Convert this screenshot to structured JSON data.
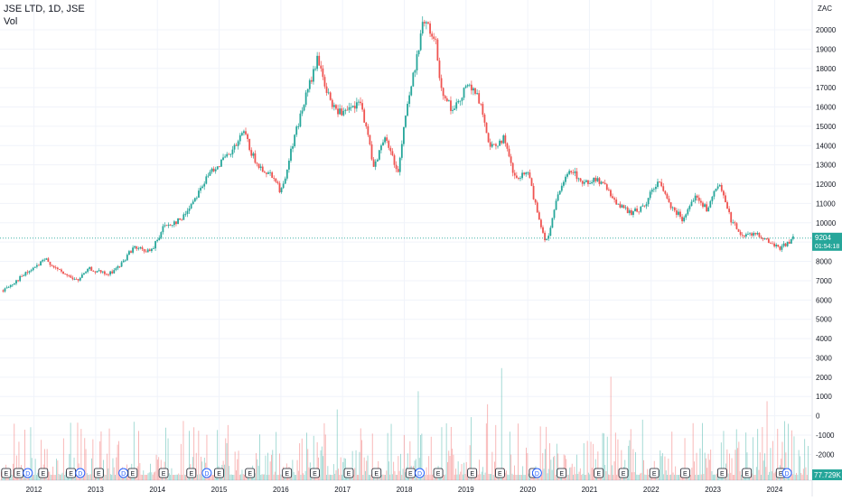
{
  "legend": {
    "symbol": "JSE LTD, 1D, JSE",
    "volume_label": "Vol"
  },
  "currency": "ZAC",
  "last_price": {
    "value": "9204",
    "countdown": "01:54:18",
    "color": "#26a69a"
  },
  "volume_last": {
    "value": "77.729K",
    "color": "#26a69a"
  },
  "colors": {
    "up": "#26a69a",
    "down": "#ef5350",
    "grid": "#f0f3fa",
    "text": "#131722",
    "event": "#2962ff"
  },
  "chart_data": {
    "type": "candlestick",
    "title": "JSE LTD, 1D, JSE",
    "x_ticks": [
      "2012",
      "2013",
      "2014",
      "2015",
      "2016",
      "2017",
      "2018",
      "2019",
      "2020",
      "2021",
      "2022",
      "2023",
      "2024"
    ],
    "price_axis": {
      "ticks": [
        0,
        1000,
        2000,
        3000,
        4000,
        5000,
        6000,
        7000,
        8000,
        9000,
        10000,
        11000,
        12000,
        13000,
        14000,
        15000,
        16000,
        17000,
        18000,
        19000,
        20000
      ]
    },
    "volume_axis": {
      "ticks": [
        -2000,
        -1000
      ]
    },
    "price_series": [
      {
        "x": 2011.5,
        "y": 6500
      },
      {
        "x": 2011.8,
        "y": 7200
      },
      {
        "x": 2012.2,
        "y": 8100
      },
      {
        "x": 2012.4,
        "y": 7500
      },
      {
        "x": 2012.7,
        "y": 7000
      },
      {
        "x": 2012.9,
        "y": 7600
      },
      {
        "x": 2013.2,
        "y": 7300
      },
      {
        "x": 2013.4,
        "y": 7800
      },
      {
        "x": 2013.6,
        "y": 8700
      },
      {
        "x": 2013.9,
        "y": 8500
      },
      {
        "x": 2014.1,
        "y": 9800
      },
      {
        "x": 2014.4,
        "y": 10200
      },
      {
        "x": 2014.7,
        "y": 11800
      },
      {
        "x": 2014.9,
        "y": 12800
      },
      {
        "x": 2015.2,
        "y": 13600
      },
      {
        "x": 2015.4,
        "y": 14700
      },
      {
        "x": 2015.6,
        "y": 13000
      },
      {
        "x": 2015.9,
        "y": 12400
      },
      {
        "x": 2016.0,
        "y": 11500
      },
      {
        "x": 2016.2,
        "y": 14200
      },
      {
        "x": 2016.4,
        "y": 16500
      },
      {
        "x": 2016.6,
        "y": 18500
      },
      {
        "x": 2016.8,
        "y": 16200
      },
      {
        "x": 2017.0,
        "y": 15600
      },
      {
        "x": 2017.3,
        "y": 16200
      },
      {
        "x": 2017.5,
        "y": 13000
      },
      {
        "x": 2017.7,
        "y": 14400
      },
      {
        "x": 2017.9,
        "y": 12600
      },
      {
        "x": 2018.0,
        "y": 15200
      },
      {
        "x": 2018.2,
        "y": 18500
      },
      {
        "x": 2018.3,
        "y": 20500
      },
      {
        "x": 2018.5,
        "y": 19500
      },
      {
        "x": 2018.6,
        "y": 17000
      },
      {
        "x": 2018.8,
        "y": 15700
      },
      {
        "x": 2019.0,
        "y": 17200
      },
      {
        "x": 2019.2,
        "y": 16500
      },
      {
        "x": 2019.4,
        "y": 13800
      },
      {
        "x": 2019.6,
        "y": 14400
      },
      {
        "x": 2019.8,
        "y": 12200
      },
      {
        "x": 2020.0,
        "y": 12600
      },
      {
        "x": 2020.2,
        "y": 10000
      },
      {
        "x": 2020.3,
        "y": 9000
      },
      {
        "x": 2020.5,
        "y": 11500
      },
      {
        "x": 2020.7,
        "y": 12800
      },
      {
        "x": 2020.9,
        "y": 12000
      },
      {
        "x": 2021.1,
        "y": 12300
      },
      {
        "x": 2021.3,
        "y": 11700
      },
      {
        "x": 2021.5,
        "y": 10800
      },
      {
        "x": 2021.7,
        "y": 10500
      },
      {
        "x": 2021.9,
        "y": 10900
      },
      {
        "x": 2022.1,
        "y": 12200
      },
      {
        "x": 2022.3,
        "y": 11000
      },
      {
        "x": 2022.5,
        "y": 10200
      },
      {
        "x": 2022.7,
        "y": 11400
      },
      {
        "x": 2022.9,
        "y": 10700
      },
      {
        "x": 2023.1,
        "y": 12000
      },
      {
        "x": 2023.3,
        "y": 10100
      },
      {
        "x": 2023.5,
        "y": 9300
      },
      {
        "x": 2023.7,
        "y": 9500
      },
      {
        "x": 2023.9,
        "y": 9000
      },
      {
        "x": 2024.1,
        "y": 8700
      },
      {
        "x": 2024.3,
        "y": 9200
      }
    ],
    "events": [
      {
        "x": 2011.55,
        "label": "E"
      },
      {
        "x": 2011.75,
        "label": "E"
      },
      {
        "x": 2011.9,
        "label": "D"
      },
      {
        "x": 2012.15,
        "label": "E"
      },
      {
        "x": 2012.6,
        "label": "E"
      },
      {
        "x": 2012.75,
        "label": "D"
      },
      {
        "x": 2013.05,
        "label": "E"
      },
      {
        "x": 2013.45,
        "label": "D"
      },
      {
        "x": 2013.6,
        "label": "E"
      },
      {
        "x": 2014.1,
        "label": "E"
      },
      {
        "x": 2014.55,
        "label": "E"
      },
      {
        "x": 2014.8,
        "label": "D"
      },
      {
        "x": 2015.0,
        "label": "E"
      },
      {
        "x": 2015.5,
        "label": "E"
      },
      {
        "x": 2016.1,
        "label": "E"
      },
      {
        "x": 2016.55,
        "label": "E"
      },
      {
        "x": 2017.1,
        "label": "E"
      },
      {
        "x": 2017.55,
        "label": "E"
      },
      {
        "x": 2018.1,
        "label": "E"
      },
      {
        "x": 2018.25,
        "label": "D"
      },
      {
        "x": 2018.55,
        "label": "E"
      },
      {
        "x": 2019.1,
        "label": "E"
      },
      {
        "x": 2019.55,
        "label": "E"
      },
      {
        "x": 2020.1,
        "label": "E"
      },
      {
        "x": 2020.15,
        "label": "D"
      },
      {
        "x": 2020.55,
        "label": "E"
      },
      {
        "x": 2021.15,
        "label": "E"
      },
      {
        "x": 2021.55,
        "label": "E"
      },
      {
        "x": 2022.05,
        "label": "E"
      },
      {
        "x": 2022.55,
        "label": "E"
      },
      {
        "x": 2023.15,
        "label": "E"
      },
      {
        "x": 2023.55,
        "label": "E"
      },
      {
        "x": 2024.1,
        "label": "E"
      },
      {
        "x": 2024.2,
        "label": "D"
      }
    ]
  }
}
